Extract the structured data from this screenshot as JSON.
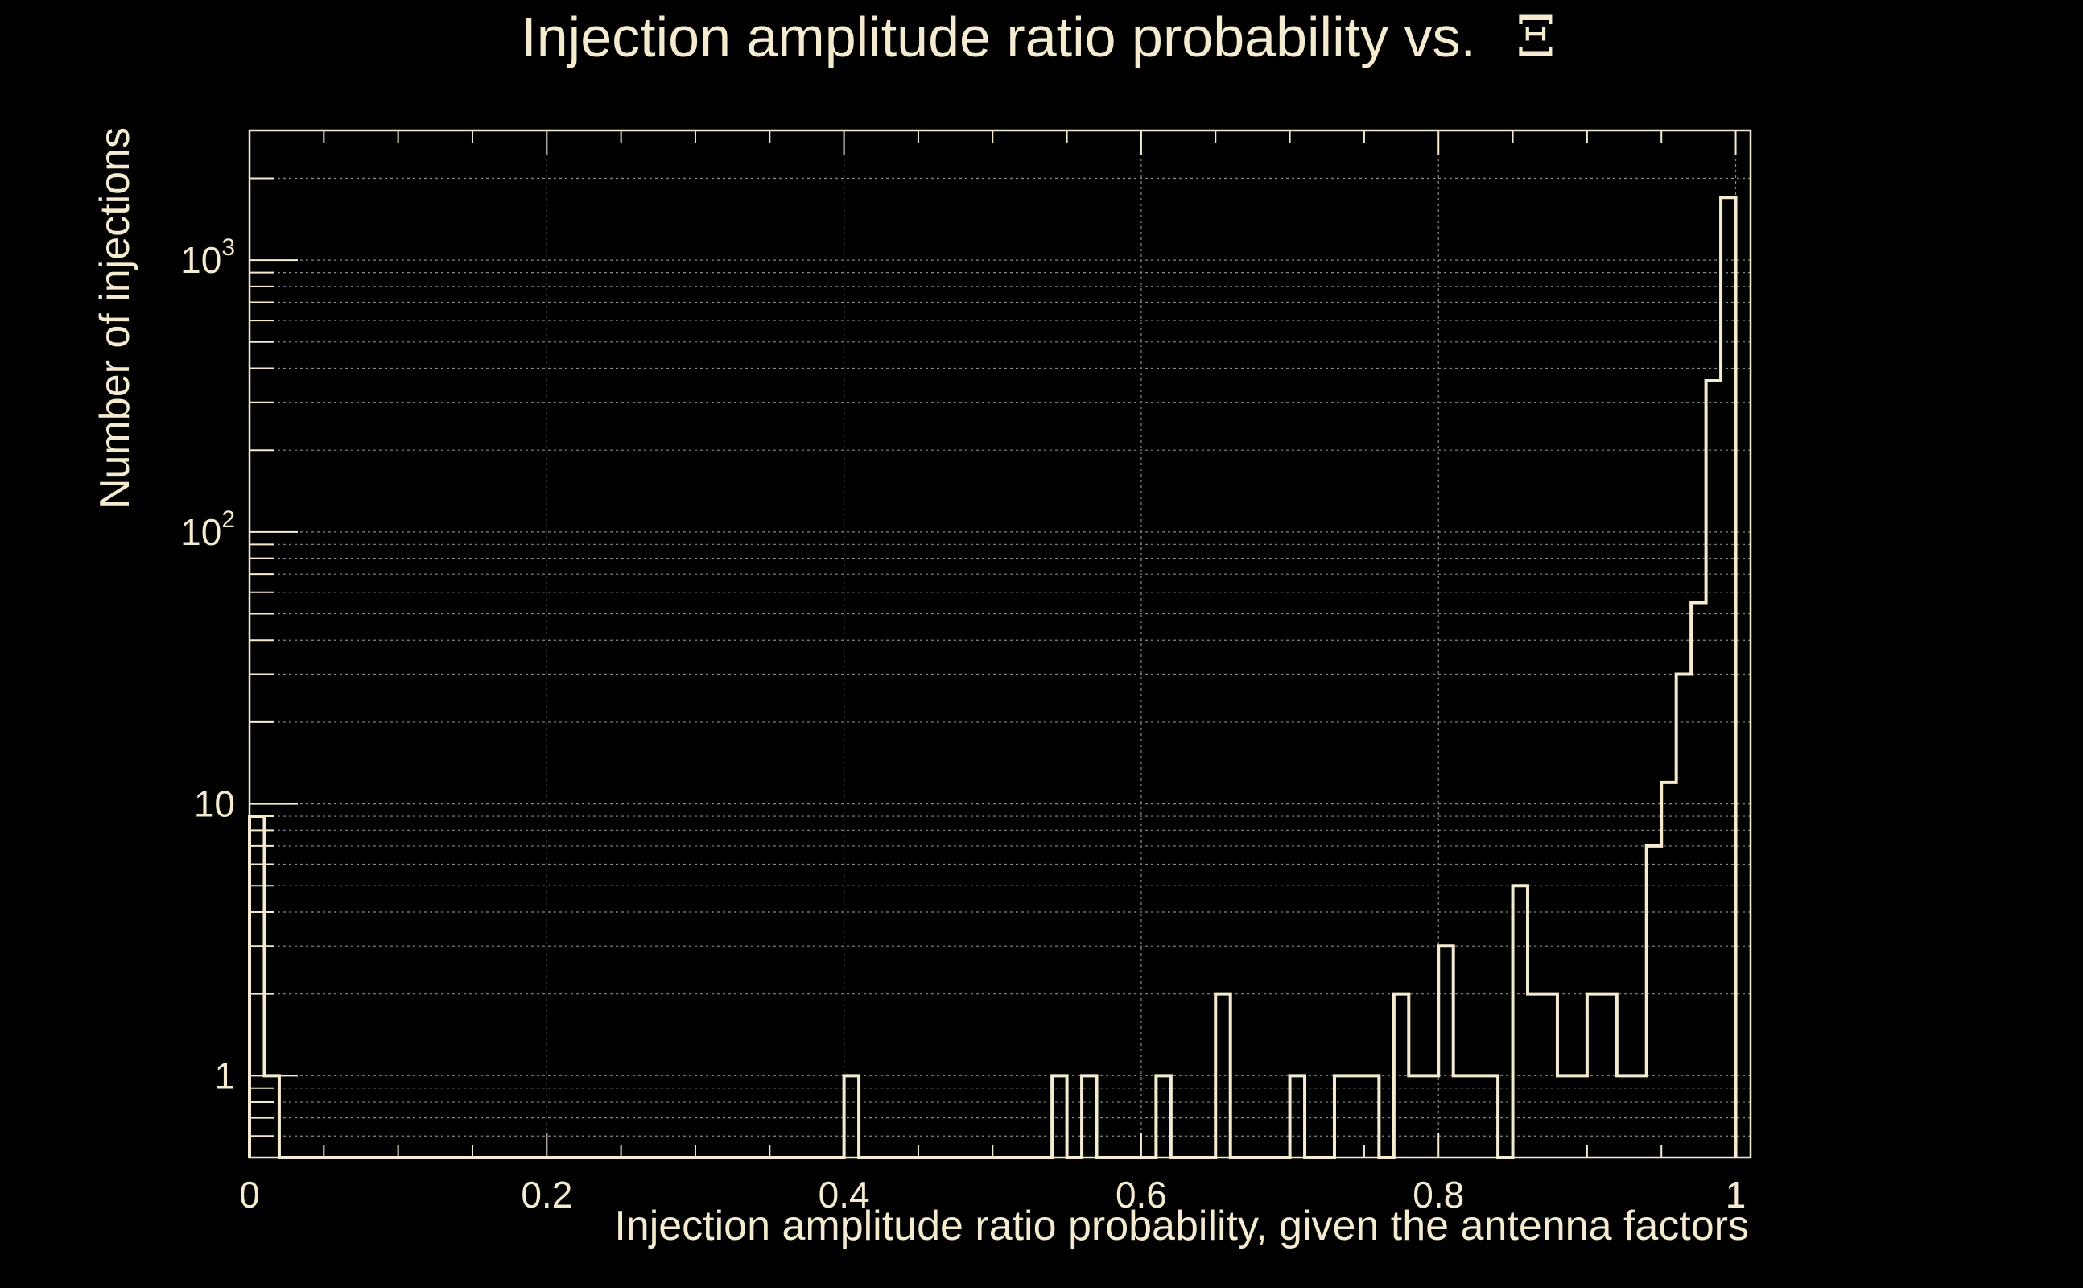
{
  "chart_data": {
    "type": "histogram",
    "title": "Injection amplitude ratio probability vs.",
    "title_symbol": "Ξ",
    "xlabel": "Injection amplitude ratio probability, given the antenna factors",
    "ylabel": "Number of injections",
    "xlim": [
      0,
      1.01
    ],
    "ylim": [
      0.5,
      3000
    ],
    "yscale": "log",
    "grid": true,
    "x_ticks": [
      {
        "value": 0,
        "label": "0"
      },
      {
        "value": 0.2,
        "label": "0.2"
      },
      {
        "value": 0.4,
        "label": "0.4"
      },
      {
        "value": 0.6,
        "label": "0.6"
      },
      {
        "value": 0.8,
        "label": "0.8"
      },
      {
        "value": 1,
        "label": "1"
      }
    ],
    "y_ticks": [
      {
        "value": 1,
        "base": "1",
        "exp": ""
      },
      {
        "value": 10,
        "base": "10",
        "exp": ""
      },
      {
        "value": 100,
        "base": "10",
        "exp": "2"
      },
      {
        "value": 1000,
        "base": "10",
        "exp": "3"
      }
    ],
    "bin_width": 0.01,
    "bins": [
      {
        "x": 0.0,
        "count": 9
      },
      {
        "x": 0.01,
        "count": 1
      },
      {
        "x": 0.4,
        "count": 1
      },
      {
        "x": 0.54,
        "count": 1
      },
      {
        "x": 0.56,
        "count": 1
      },
      {
        "x": 0.61,
        "count": 1
      },
      {
        "x": 0.65,
        "count": 2
      },
      {
        "x": 0.7,
        "count": 1
      },
      {
        "x": 0.73,
        "count": 1
      },
      {
        "x": 0.74,
        "count": 1
      },
      {
        "x": 0.75,
        "count": 1
      },
      {
        "x": 0.77,
        "count": 2
      },
      {
        "x": 0.78,
        "count": 1
      },
      {
        "x": 0.79,
        "count": 1
      },
      {
        "x": 0.8,
        "count": 3
      },
      {
        "x": 0.81,
        "count": 1
      },
      {
        "x": 0.82,
        "count": 1
      },
      {
        "x": 0.83,
        "count": 1
      },
      {
        "x": 0.85,
        "count": 5
      },
      {
        "x": 0.86,
        "count": 2
      },
      {
        "x": 0.87,
        "count": 2
      },
      {
        "x": 0.88,
        "count": 1
      },
      {
        "x": 0.89,
        "count": 1
      },
      {
        "x": 0.9,
        "count": 2
      },
      {
        "x": 0.91,
        "count": 2
      },
      {
        "x": 0.92,
        "count": 1
      },
      {
        "x": 0.93,
        "count": 1
      },
      {
        "x": 0.94,
        "count": 7
      },
      {
        "x": 0.95,
        "count": 12
      },
      {
        "x": 0.96,
        "count": 30
      },
      {
        "x": 0.97,
        "count": 55
      },
      {
        "x": 0.98,
        "count": 360
      },
      {
        "x": 0.99,
        "count": 1700
      }
    ],
    "colors": {
      "background": "#000000",
      "foreground": "#f5ecd0",
      "grid": "#8a8a8a"
    }
  }
}
